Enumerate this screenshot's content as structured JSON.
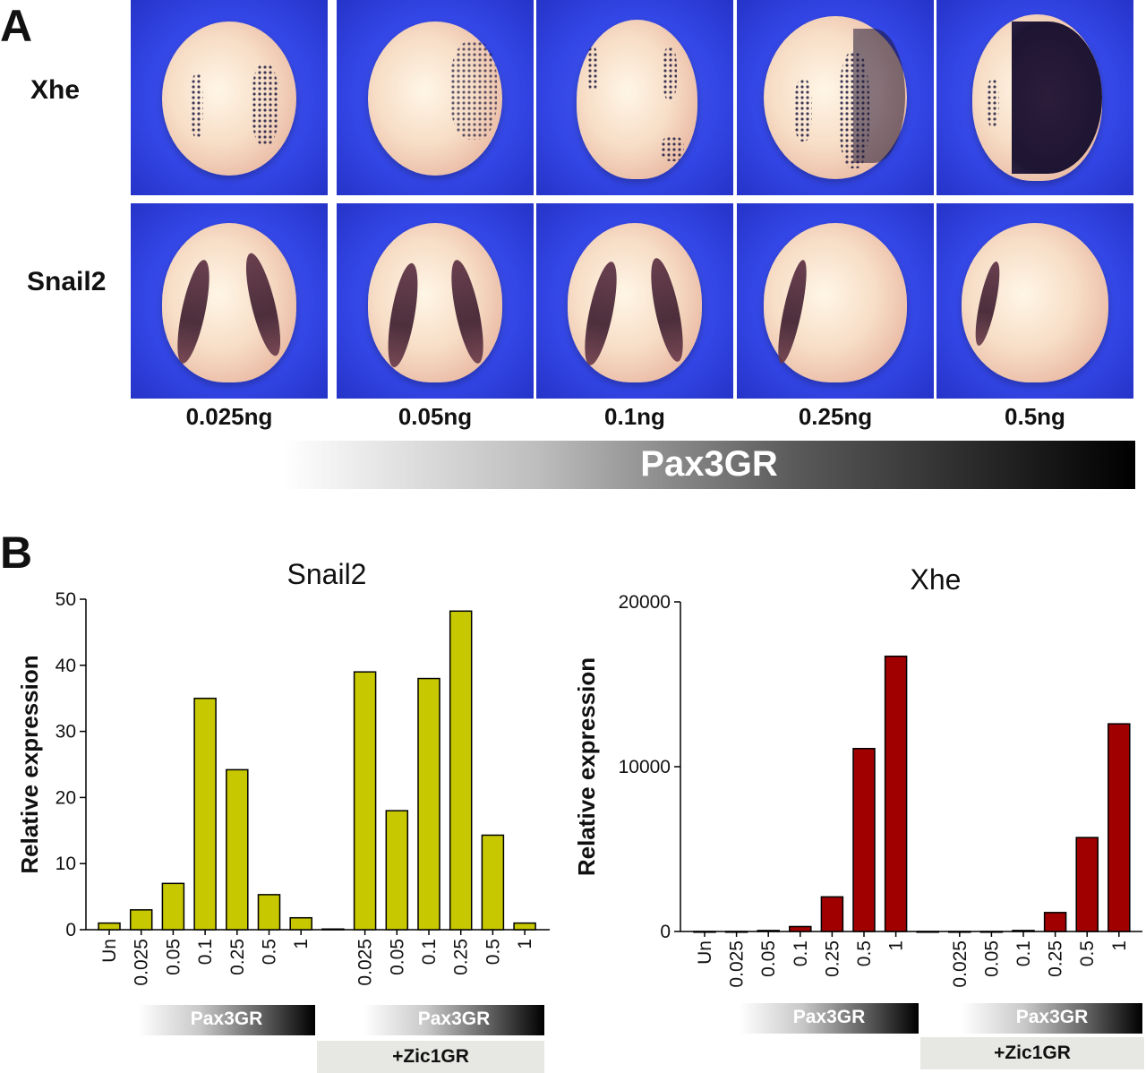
{
  "panel_a": {
    "letter": "A",
    "rows": [
      "Xhe",
      "Snail2"
    ],
    "doses": [
      "0.025ng",
      "0.05ng",
      "0.1ng",
      "0.25ng",
      "0.5ng"
    ],
    "gradient_label": "Pax3GR"
  },
  "panel_b": {
    "letter": "B",
    "gradient_label": "Pax3GR",
    "zic_label": "+Zic1GR"
  },
  "chart_data": [
    {
      "type": "bar",
      "title": "Snail2",
      "ylabel": "Relative expression",
      "xlabel": "",
      "ylim": [
        0,
        50
      ],
      "yticks": [
        0,
        10,
        20,
        30,
        40,
        50
      ],
      "color": "#c8c800",
      "categories": [
        "Un",
        "0.025",
        "0.05",
        "0.1",
        "0.25",
        "0.5",
        "1",
        "",
        "0.025",
        "0.05",
        "0.1",
        "0.25",
        "0.5",
        "1"
      ],
      "values": [
        1,
        3,
        7,
        35,
        24.2,
        5.3,
        1.8,
        0.1,
        39,
        18,
        38,
        48.2,
        14.3,
        1
      ],
      "groups": [
        {
          "label": "Pax3GR",
          "categories": [
            "0.025",
            "0.05",
            "0.1",
            "0.25",
            "0.5",
            "1"
          ]
        },
        {
          "label": "Pax3GR +Zic1GR",
          "categories": [
            "0.025",
            "0.05",
            "0.1",
            "0.25",
            "0.5",
            "1"
          ]
        }
      ]
    },
    {
      "type": "bar",
      "title": "Xhe",
      "ylabel": "Relative expression",
      "xlabel": "",
      "ylim": [
        0,
        20000
      ],
      "yticks": [
        0,
        10000,
        20000
      ],
      "color": "#a00000",
      "categories": [
        "Un",
        "0.025",
        "0.05",
        "0.1",
        "0.25",
        "0.5",
        "1",
        "",
        "0.025",
        "0.05",
        "0.1",
        "0.25",
        "0.5",
        "1"
      ],
      "values": [
        0,
        0,
        60,
        300,
        2100,
        11100,
        16700,
        0,
        0,
        0,
        60,
        1150,
        5700,
        12600
      ],
      "groups": [
        {
          "label": "Pax3GR",
          "categories": [
            "0.025",
            "0.05",
            "0.1",
            "0.25",
            "0.5",
            "1"
          ]
        },
        {
          "label": "Pax3GR +Zic1GR",
          "categories": [
            "0.025",
            "0.05",
            "0.1",
            "0.25",
            "0.5",
            "1"
          ]
        }
      ]
    }
  ]
}
